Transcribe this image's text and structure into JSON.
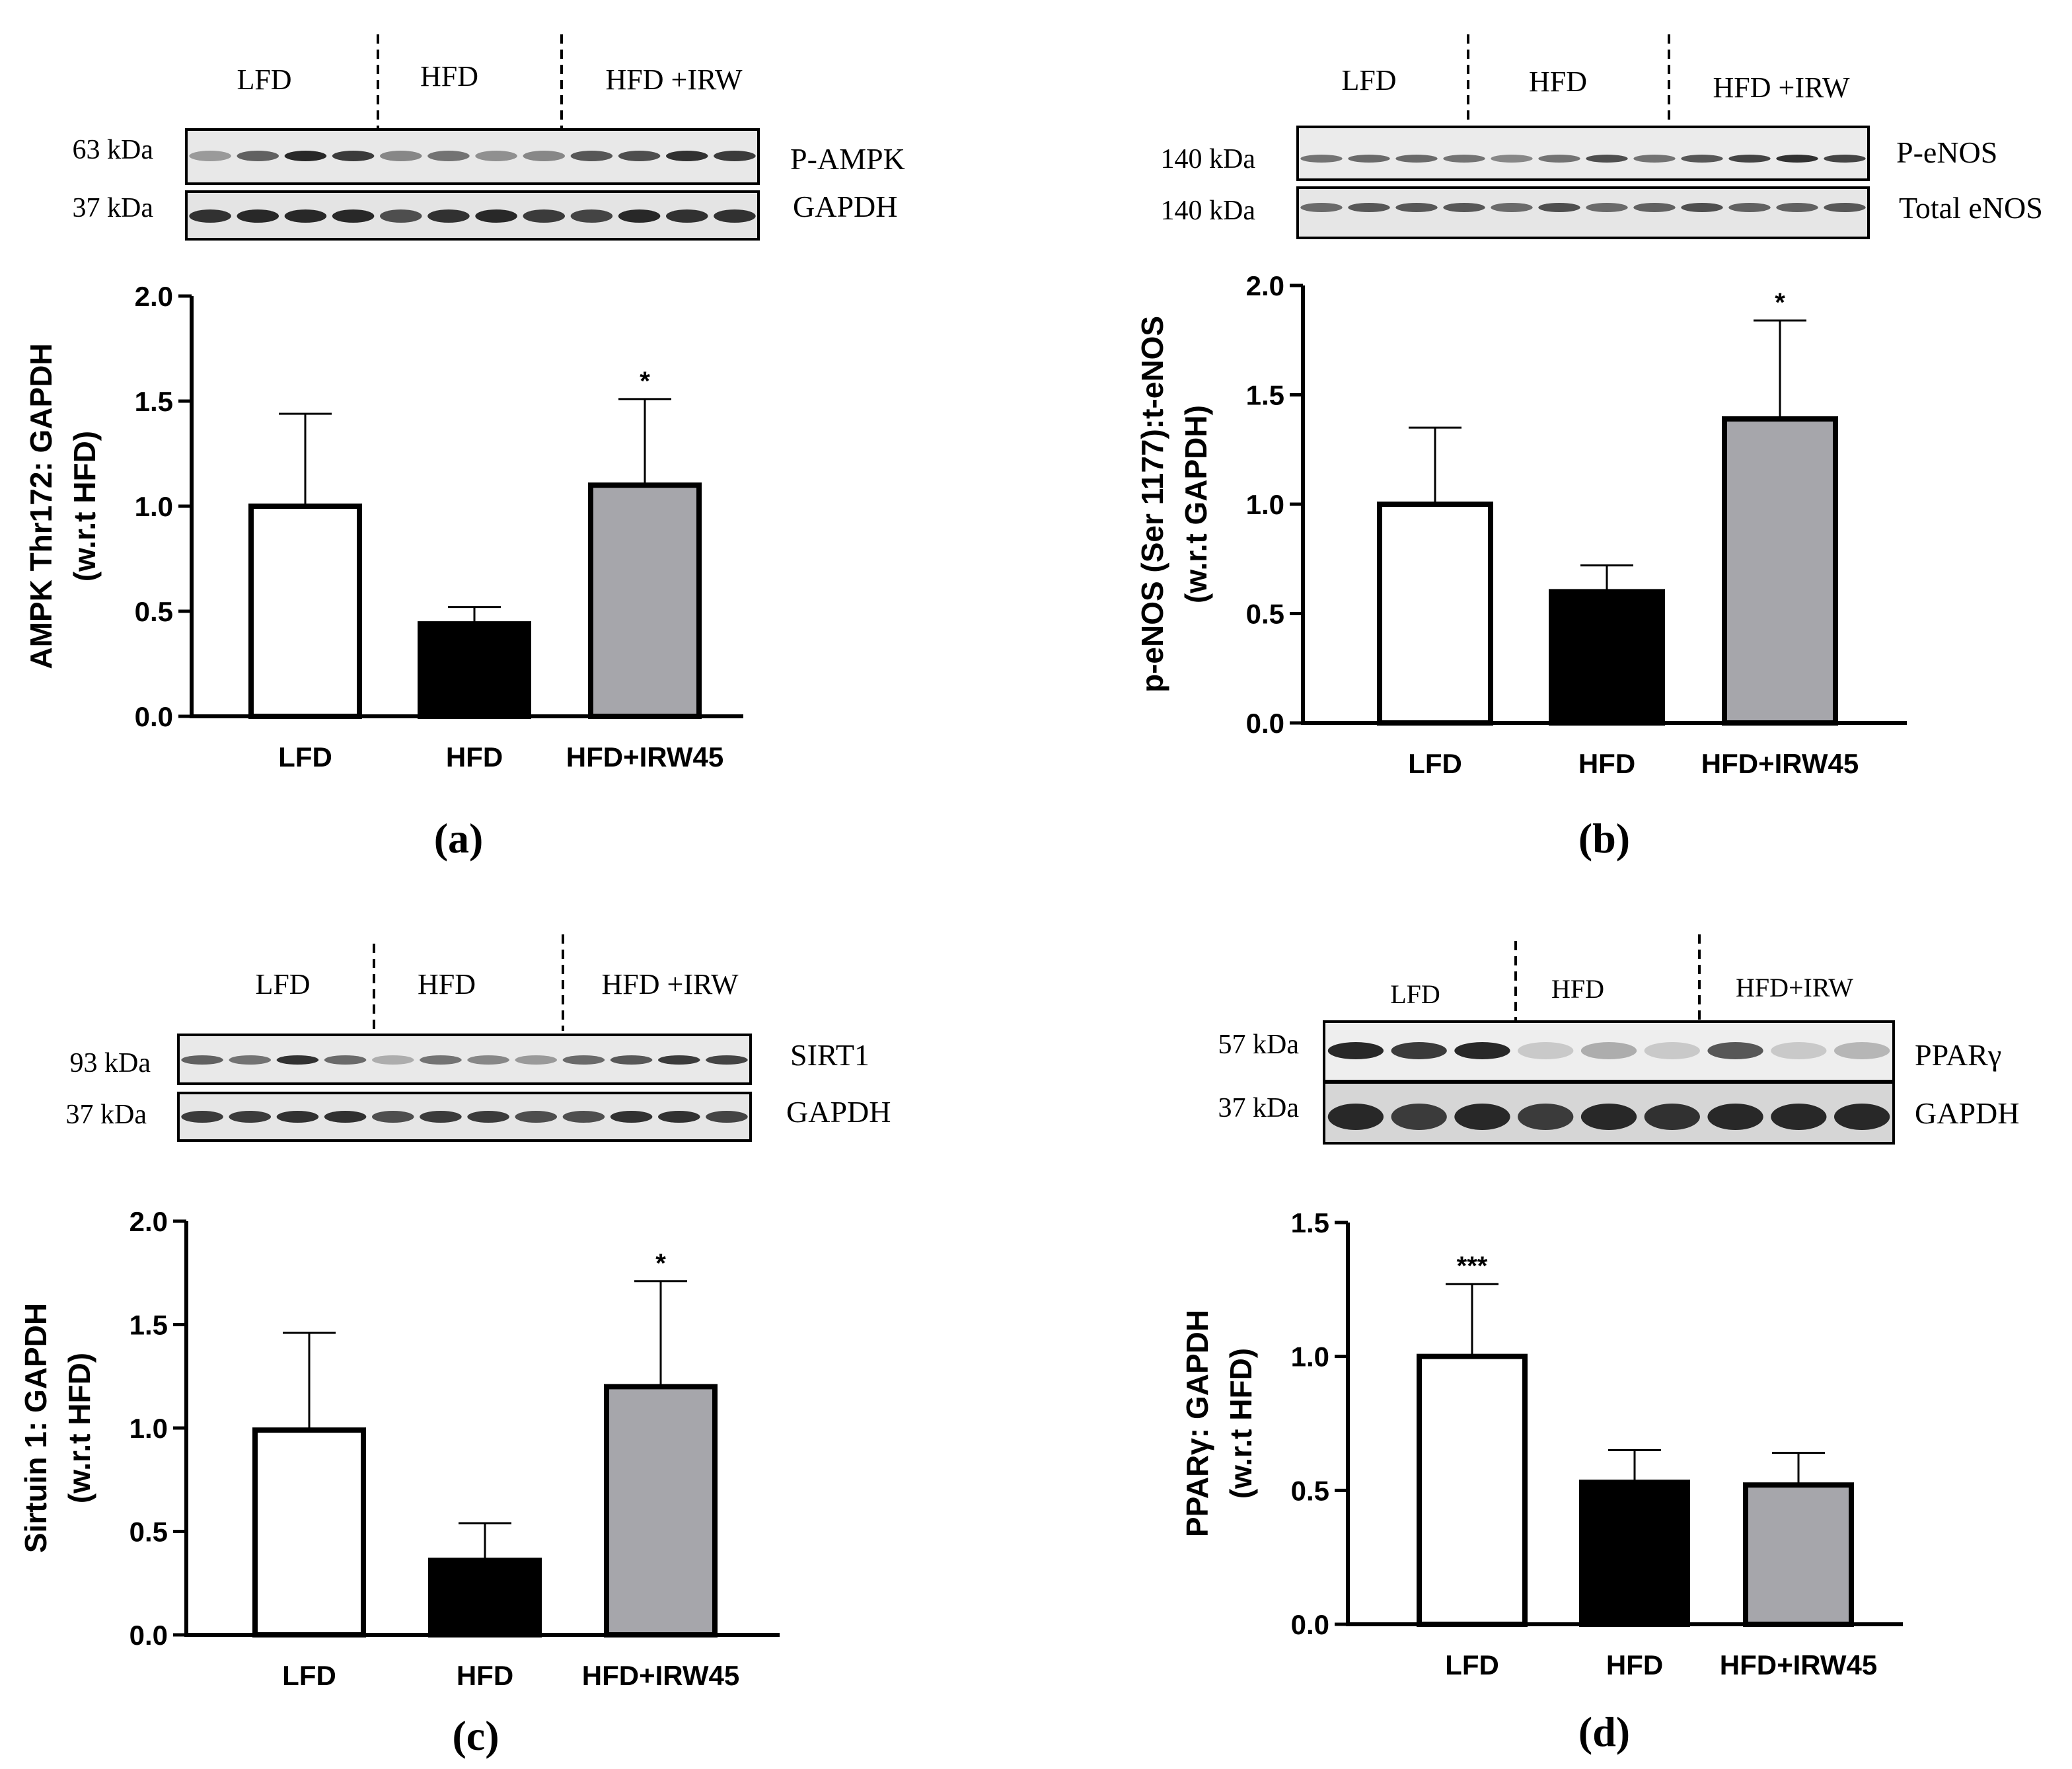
{
  "colors": {
    "lfd": "#ffffff",
    "hfd": "#000000",
    "irw": "#a6a6ab",
    "axis": "#000000"
  },
  "chart_data": [
    {
      "id": "a",
      "type": "bar",
      "panel_label": "(a)",
      "blot": {
        "groups": [
          "LFD",
          "HFD",
          "HFD +IRW"
        ],
        "rows": [
          {
            "weight": "63 kDa",
            "protein": "P-AMPK"
          },
          {
            "weight": "37 kDa",
            "protein": "GAPDH"
          }
        ]
      },
      "categories": [
        "LFD",
        "HFD",
        "HFD+IRW45"
      ],
      "values": [
        1.0,
        0.44,
        1.1
      ],
      "errors": [
        0.44,
        0.08,
        0.41
      ],
      "significance": [
        "",
        "",
        "*"
      ],
      "ylabel": [
        "AMPK Thr172: GAPDH",
        "(w.r.t HFD)"
      ],
      "ylim": [
        0,
        2.0
      ],
      "yticks": [
        "0.0",
        "0.5",
        "1.0",
        "1.5",
        "2.0"
      ]
    },
    {
      "id": "b",
      "type": "bar",
      "panel_label": "(b)",
      "blot": {
        "groups": [
          "LFD",
          "HFD",
          "HFD +IRW"
        ],
        "rows": [
          {
            "weight": "140 kDa",
            "protein": "P-eNOS"
          },
          {
            "weight": "140 kDa",
            "protein": "Total eNOS"
          }
        ]
      },
      "categories": [
        "LFD",
        "HFD",
        "HFD+IRW45"
      ],
      "values": [
        1.0,
        0.6,
        1.39
      ],
      "errors": [
        0.35,
        0.12,
        0.45
      ],
      "significance": [
        "",
        "",
        "*"
      ],
      "ylabel": [
        "p-eNOS (Ser 1177):t-eNOS",
        "(w.r.t GAPDH)"
      ],
      "ylim": [
        0,
        2.0
      ],
      "yticks": [
        "0.0",
        "0.5",
        "1.0",
        "1.5",
        "2.0"
      ]
    },
    {
      "id": "c",
      "type": "bar",
      "panel_label": "(c)",
      "blot": {
        "groups": [
          "LFD",
          "HFD",
          "HFD +IRW"
        ],
        "rows": [
          {
            "weight": "93 kDa",
            "protein": "SIRT1"
          },
          {
            "weight": "37 kDa",
            "protein": "GAPDH"
          }
        ]
      },
      "categories": [
        "LFD",
        "HFD",
        "HFD+IRW45"
      ],
      "values": [
        0.99,
        0.36,
        1.2
      ],
      "errors": [
        0.47,
        0.18,
        0.51
      ],
      "significance": [
        "",
        "",
        "*"
      ],
      "ylabel": [
        "Sirtuin 1: GAPDH",
        "(w.r.t HFD)"
      ],
      "ylim": [
        0,
        2.0
      ],
      "yticks": [
        "0.0",
        "0.5",
        "1.0",
        "1.5",
        "2.0"
      ]
    },
    {
      "id": "d",
      "type": "bar",
      "panel_label": "(d)",
      "blot": {
        "groups": [
          "LFD",
          "HFD",
          "HFD+IRW"
        ],
        "rows": [
          {
            "weight": "57 kDa",
            "protein": "PPARγ"
          },
          {
            "weight": "37 kDa",
            "protein": "GAPDH"
          }
        ]
      },
      "categories": [
        "LFD",
        "HFD",
        "HFD+IRW45"
      ],
      "values": [
        1.0,
        0.53,
        0.52
      ],
      "errors": [
        0.27,
        0.12,
        0.12
      ],
      "significance": [
        "***",
        "",
        ""
      ],
      "ylabel": [
        "PPARγ: GAPDH",
        "(w.r.t HFD)"
      ],
      "ylim": [
        0,
        1.5
      ],
      "yticks": [
        "0.0",
        "0.5",
        "1.0",
        "1.5"
      ]
    }
  ]
}
